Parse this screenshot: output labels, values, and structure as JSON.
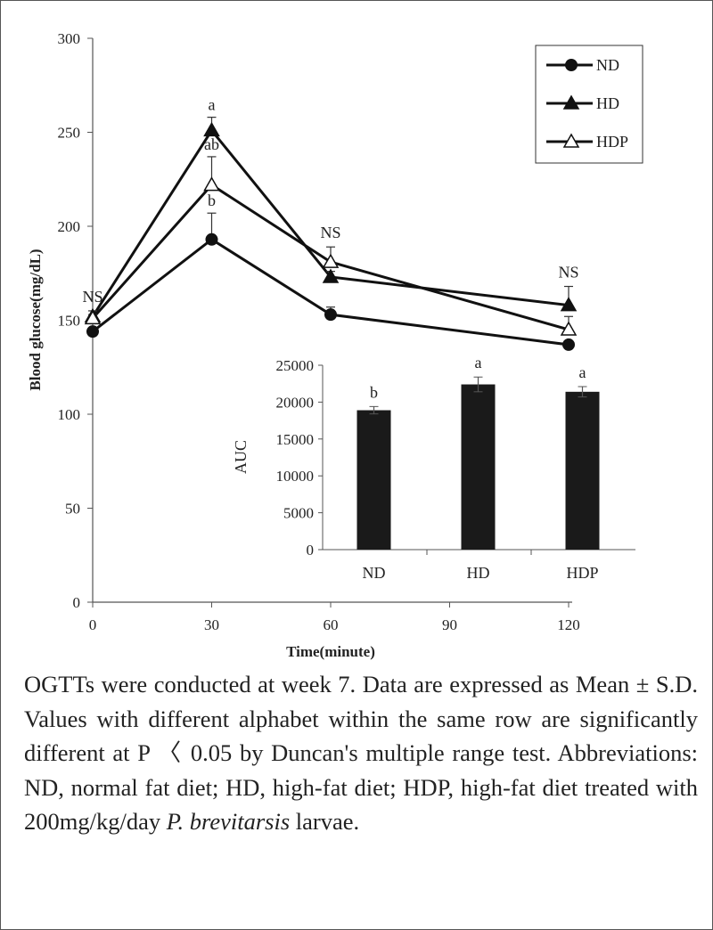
{
  "chart_data": [
    {
      "type": "line",
      "xlabel": "Time(minute)",
      "ylabel": "Blood glucose(mg/dL)",
      "xlim": [
        0,
        120
      ],
      "ylim": [
        0,
        300
      ],
      "xticks": [
        0,
        30,
        60,
        90,
        120
      ],
      "yticks": [
        0,
        50,
        100,
        150,
        200,
        250,
        300
      ],
      "legend_position": "top-right",
      "x": [
        0,
        30,
        60,
        120
      ],
      "series": [
        {
          "name": "ND",
          "marker": "filled-circle",
          "values": [
            144,
            193,
            153,
            137
          ],
          "errors": [
            2,
            14,
            4,
            2
          ]
        },
        {
          "name": "HD",
          "marker": "filled-triangle",
          "values": [
            152,
            251,
            173,
            158
          ],
          "errors": [
            3,
            7,
            3,
            10
          ]
        },
        {
          "name": "HDP",
          "marker": "open-triangle",
          "values": [
            151,
            222,
            181,
            145
          ],
          "errors": [
            2,
            15,
            8,
            7
          ]
        }
      ],
      "annotations": [
        {
          "x": 0,
          "text": "NS"
        },
        {
          "x": 30,
          "text": "a",
          "series": "HD"
        },
        {
          "x": 30,
          "text": "ab",
          "series": "HDP"
        },
        {
          "x": 30,
          "text": "b",
          "series": "ND"
        },
        {
          "x": 60,
          "text": "NS"
        },
        {
          "x": 120,
          "text": "NS"
        }
      ]
    },
    {
      "type": "bar",
      "ylabel": "AUC",
      "categories": [
        "ND",
        "HD",
        "HDP"
      ],
      "values": [
        18900,
        22400,
        21400
      ],
      "errors": [
        500,
        1000,
        700
      ],
      "labels": [
        "b",
        "a",
        "a"
      ],
      "ylim": [
        0,
        25000
      ],
      "yticks": [
        0,
        5000,
        10000,
        15000,
        20000,
        25000
      ],
      "bar_color": "#1a1a1a"
    }
  ],
  "caption": {
    "text": "OGTTs were conducted at week 7. Data are expressed as Mean ± S.D. Values with different alphabet within the same row are significantly different at P 〈 0.05 by Duncan's multiple range test. Abbreviations: ND, normal fat diet; HD, high-fat diet; HDP, high-fat diet treated with 200mg/kg/day ",
    "italic": "P. brevitarsis",
    "end": " larvae."
  }
}
